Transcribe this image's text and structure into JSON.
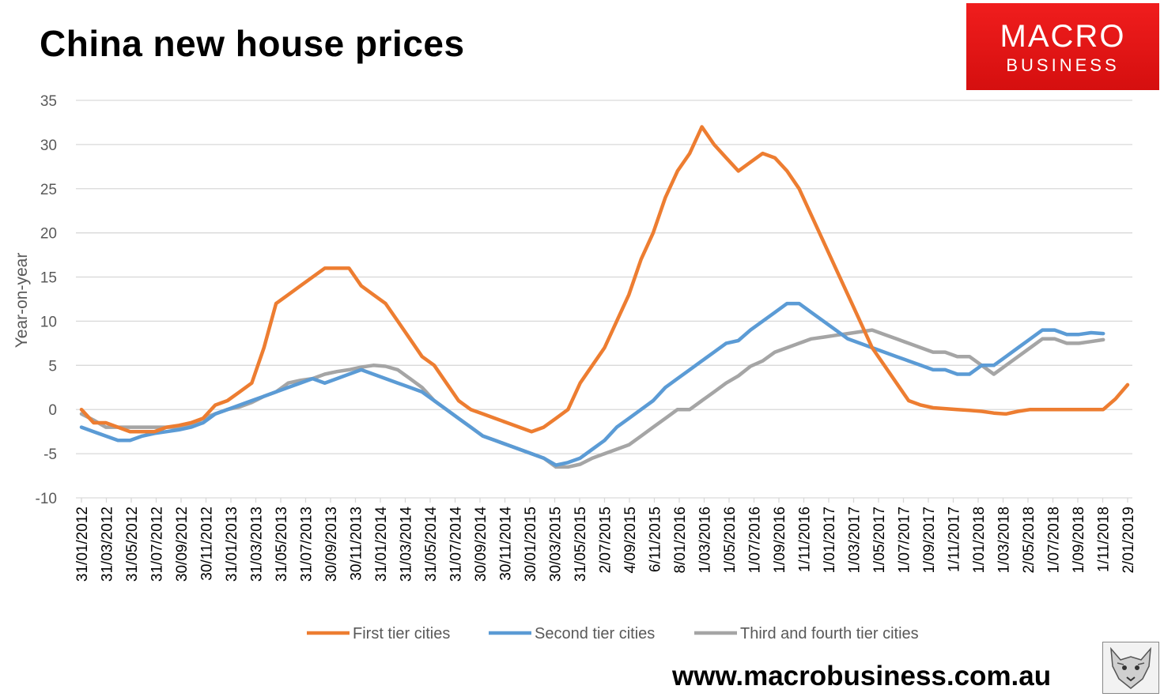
{
  "title": "China new house prices",
  "logo": {
    "line1": "MACRO",
    "line2": "BUSINESS"
  },
  "website": "www.macrobusiness.com.au",
  "chart_data": {
    "type": "line",
    "title": "China new house prices",
    "ylabel": "Year-on-year",
    "xlabel": "",
    "ylim": [
      -10,
      35
    ],
    "yticks": [
      35,
      30,
      25,
      20,
      15,
      10,
      5,
      0,
      -5,
      -10
    ],
    "grid": true,
    "legend_position": "bottom",
    "x_tick_labels": [
      "31/01/2012",
      "31/03/2012",
      "31/05/2012",
      "31/07/2012",
      "30/09/2012",
      "30/11/2012",
      "31/01/2013",
      "31/03/2013",
      "31/05/2013",
      "31/07/2013",
      "30/09/2013",
      "30/11/2013",
      "31/01/2014",
      "31/03/2014",
      "31/05/2014",
      "31/07/2014",
      "30/09/2014",
      "30/11/2014",
      "30/01/2015",
      "30/03/2015",
      "31/05/2015",
      "2/07/2015",
      "4/09/2015",
      "6/11/2015",
      "8/01/2016",
      "1/03/2016",
      "1/05/2016",
      "1/07/2016",
      "1/09/2016",
      "1/11/2016",
      "1/01/2017",
      "1/03/2017",
      "1/05/2017",
      "1/07/2017",
      "1/09/2017",
      "1/11/2017",
      "1/01/2018",
      "1/03/2018",
      "2/05/2018",
      "1/07/2018",
      "1/09/2018",
      "1/11/2018",
      "2/01/2019"
    ],
    "series": [
      {
        "name": "First tier cities",
        "color": "#ed7d31",
        "values": [
          0,
          -1.5,
          -1.5,
          -2,
          -2.5,
          -2.5,
          -2.5,
          -2,
          -1.8,
          -1.5,
          -1,
          0.5,
          1,
          2,
          3,
          7,
          12,
          13,
          14,
          15,
          16,
          16,
          16,
          14,
          13,
          12,
          10,
          8,
          6,
          5,
          3,
          1,
          0,
          -0.5,
          -1,
          -1.5,
          -2,
          -2.5,
          -2,
          -1,
          0,
          3,
          5,
          7,
          10,
          13,
          17,
          20,
          24,
          27,
          29,
          32,
          30,
          28.5,
          27,
          28,
          29,
          28.5,
          27,
          25,
          22,
          19,
          16,
          13,
          10,
          7,
          5,
          3,
          1,
          0.5,
          0.2,
          0.1,
          0,
          -0.1,
          -0.2,
          -0.4,
          -0.5,
          -0.2,
          0,
          0,
          0,
          0,
          0,
          0,
          0,
          1.2,
          2.8
        ]
      },
      {
        "name": "Second tier cities",
        "color": "#5b9bd5",
        "values": [
          -2,
          -2.5,
          -3,
          -3.5,
          -3.5,
          -3,
          -2.7,
          -2.5,
          -2.3,
          -2,
          -1.5,
          -0.5,
          0,
          0.5,
          1,
          1.5,
          2,
          2.5,
          3,
          3.5,
          3,
          3.5,
          4,
          4.5,
          4,
          3.5,
          3,
          2.5,
          2,
          1,
          0,
          -1,
          -2,
          -3,
          -3.5,
          -4,
          -4.5,
          -5,
          -5.5,
          -6.3,
          -6,
          -5.5,
          -4.5,
          -3.5,
          -2,
          -1,
          0,
          1,
          2.5,
          3.5,
          4.5,
          5.5,
          6.5,
          7.5,
          7.8,
          9,
          10,
          11,
          12,
          12,
          11,
          10,
          9,
          8,
          7.5,
          7,
          6.5,
          6,
          5.5,
          5,
          4.5,
          4.5,
          4,
          4,
          5,
          5,
          6,
          7,
          8,
          9,
          9,
          8.5,
          8.5,
          8.7,
          8.6
        ]
      },
      {
        "name": "Third and fourth tier cities",
        "color": "#a5a5a5",
        "values": [
          -0.5,
          -1.2,
          -2,
          -2,
          -2,
          -2,
          -2,
          -2,
          -2,
          -1.8,
          -1,
          -0.5,
          0,
          0.3,
          0.8,
          1.5,
          2,
          3,
          3.3,
          3.5,
          4,
          4.3,
          4.5,
          4.8,
          5,
          4.9,
          4.5,
          3.5,
          2.5,
          1,
          0,
          -1,
          -2,
          -3,
          -3.5,
          -4,
          -4.5,
          -5,
          -5.5,
          -6.5,
          -6.5,
          -6.2,
          -5.5,
          -5,
          -4.5,
          -4,
          -3,
          -2,
          -1,
          0,
          0,
          1,
          2,
          3,
          3.8,
          4.9,
          5.5,
          6.5,
          7,
          7.5,
          8,
          8.2,
          8.4,
          8.6,
          8.8,
          9,
          8.5,
          8,
          7.5,
          7,
          6.5,
          6.5,
          6,
          6,
          5,
          4,
          5,
          6,
          7,
          8,
          8,
          7.5,
          7.5,
          7.7,
          7.9
        ]
      }
    ]
  }
}
